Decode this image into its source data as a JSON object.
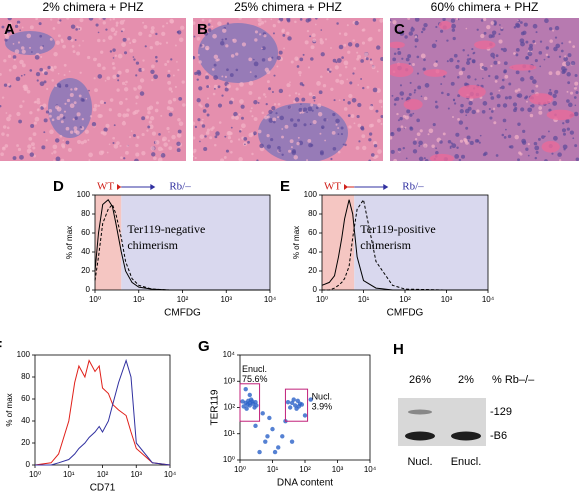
{
  "images": [
    {
      "letter": "A",
      "title": "2% chimera + PHZ"
    },
    {
      "letter": "B",
      "title": "25% chimera + PHZ"
    },
    {
      "letter": "C",
      "title": "60% chimera + PHZ"
    }
  ],
  "chart_data": [
    {
      "type": "line",
      "letter": "D",
      "ylabel": "% of max",
      "xlabel": "CMFDG",
      "xscale": "log",
      "xlim": [
        1,
        10000
      ],
      "ylim": [
        0,
        100
      ],
      "xticks": [
        {
          "value": 1,
          "label": "10⁰"
        },
        {
          "value": 10,
          "label": "10¹"
        },
        {
          "value": 100,
          "label": "10²"
        },
        {
          "value": 1000,
          "label": "10³"
        },
        {
          "value": 10000,
          "label": "10⁴"
        }
      ],
      "yticks": [
        0,
        20,
        40,
        60,
        80,
        100
      ],
      "regions": [
        {
          "from": 1,
          "to": 4,
          "color": "#f5c6c2"
        },
        {
          "from": 4,
          "to": 10000,
          "color": "#d9d8ee"
        }
      ],
      "annotations": {
        "left": "WT",
        "right": "Rb/–",
        "note": [
          "Ter119-negative",
          "chimerism"
        ]
      },
      "series": [
        {
          "color": "#000000",
          "style": "solid",
          "x": [
            1,
            1.2,
            1.5,
            2,
            2.5,
            3,
            4,
            5,
            7,
            10,
            20,
            50,
            100,
            1000,
            10000
          ],
          "values": [
            20,
            60,
            90,
            95,
            88,
            70,
            40,
            20,
            8,
            3,
            1,
            0,
            0,
            0,
            0
          ]
        },
        {
          "color": "#000000",
          "style": "dashed",
          "x": [
            1,
            1.2,
            1.5,
            2,
            2.5,
            3,
            4,
            5,
            7,
            10,
            20,
            50,
            100,
            1000,
            10000
          ],
          "values": [
            10,
            35,
            70,
            85,
            90,
            80,
            55,
            30,
            12,
            5,
            1,
            0,
            0,
            0,
            0
          ]
        }
      ]
    },
    {
      "type": "line",
      "letter": "E",
      "ylabel": "% of max",
      "xlabel": "CMFDG",
      "xscale": "log",
      "xlim": [
        1,
        10000
      ],
      "ylim": [
        0,
        100
      ],
      "xticks": [
        {
          "value": 1,
          "label": "10⁰"
        },
        {
          "value": 10,
          "label": "10¹"
        },
        {
          "value": 100,
          "label": "10²"
        },
        {
          "value": 1000,
          "label": "10³"
        },
        {
          "value": 10000,
          "label": "10⁴"
        }
      ],
      "yticks": [
        0,
        20,
        40,
        60,
        80,
        100
      ],
      "regions": [
        {
          "from": 1,
          "to": 6,
          "color": "#f5c6c2"
        },
        {
          "from": 6,
          "to": 10000,
          "color": "#d9d8ee"
        }
      ],
      "annotations": {
        "left": "WT",
        "right": "Rb/–",
        "note": [
          "Ter119-positive",
          "chimerism"
        ]
      },
      "series": [
        {
          "color": "#000000",
          "style": "solid",
          "x": [
            1,
            1.5,
            2,
            2.5,
            3,
            3.5,
            4.5,
            5.5,
            7,
            10,
            20,
            50,
            100,
            1000,
            10000
          ],
          "values": [
            5,
            8,
            15,
            35,
            55,
            75,
            95,
            80,
            35,
            10,
            2,
            0,
            0,
            0,
            0
          ]
        },
        {
          "color": "#000000",
          "style": "dashed",
          "x": [
            1,
            1.5,
            2,
            2.5,
            3,
            3.5,
            4.5,
            5.5,
            7,
            10,
            20,
            50,
            100,
            1000,
            10000
          ],
          "values": [
            0,
            0,
            2,
            5,
            8,
            12,
            25,
            55,
            85,
            95,
            30,
            5,
            1,
            0,
            0
          ]
        }
      ]
    },
    {
      "type": "line",
      "letter": "F",
      "ylabel": "% of max",
      "xlabel": "CD71",
      "xscale": "log",
      "xlim": [
        1,
        10000
      ],
      "ylim": [
        0,
        100
      ],
      "xticks": [
        {
          "value": 1,
          "label": "10⁰"
        },
        {
          "value": 10,
          "label": "10¹"
        },
        {
          "value": 100,
          "label": "10²"
        },
        {
          "value": 1000,
          "label": "10³"
        },
        {
          "value": 10000,
          "label": "10⁴"
        }
      ],
      "yticks": [
        0,
        20,
        40,
        60,
        80,
        100
      ],
      "series": [
        {
          "color": "#e0201a",
          "style": "solid",
          "x": [
            1,
            3,
            5,
            10,
            15,
            20,
            30,
            40,
            60,
            80,
            100,
            150,
            200,
            300,
            500,
            700,
            1000,
            3000,
            10000
          ],
          "values": [
            0,
            2,
            10,
            40,
            75,
            90,
            80,
            95,
            85,
            90,
            70,
            65,
            55,
            50,
            45,
            30,
            15,
            2,
            0
          ]
        },
        {
          "color": "#3030a0",
          "style": "solid",
          "x": [
            1,
            3,
            5,
            10,
            15,
            20,
            30,
            40,
            60,
            80,
            100,
            150,
            200,
            300,
            500,
            700,
            1000,
            3000,
            10000
          ],
          "values": [
            0,
            0,
            2,
            5,
            10,
            15,
            20,
            25,
            30,
            35,
            30,
            40,
            55,
            75,
            95,
            80,
            20,
            2,
            0
          ]
        }
      ]
    },
    {
      "type": "scatter",
      "letter": "G",
      "ylabel": "TER119",
      "xlabel": "DNA content",
      "xscale": "log",
      "yscale": "log",
      "xlim": [
        1,
        10000
      ],
      "ylim": [
        1,
        10000
      ],
      "xticks": [
        {
          "value": 1,
          "label": "10⁰"
        },
        {
          "value": 10,
          "label": "10¹"
        },
        {
          "value": 100,
          "label": "10²"
        },
        {
          "value": 1000,
          "label": "10³"
        },
        {
          "value": 10000,
          "label": "10⁴"
        }
      ],
      "yticks": [
        {
          "value": 1,
          "label": "10⁰"
        },
        {
          "value": 10,
          "label": "10¹"
        },
        {
          "value": 100,
          "label": "10²"
        },
        {
          "value": 1000,
          "label": "10³"
        },
        {
          "value": 10000,
          "label": "10⁴"
        }
      ],
      "color": "#2a62c8",
      "x": [
        1.5,
        2,
        1.8,
        2.5,
        1.3,
        3,
        2.2,
        1.6,
        2.8,
        1.2,
        2,
        1.7,
        2.4,
        3.2,
        40,
        50,
        60,
        35,
        70,
        45,
        55,
        80,
        30,
        65,
        5,
        8,
        3,
        10,
        20,
        6,
        15,
        4,
        25,
        100,
        150,
        2,
        1.5,
        7,
        12,
        40
      ],
      "values": [
        150,
        120,
        180,
        140,
        110,
        160,
        200,
        90,
        100,
        170,
        150,
        130,
        170,
        120,
        150,
        120,
        180,
        100,
        140,
        200,
        90,
        130,
        160,
        110,
        60,
        40,
        20,
        15,
        8,
        5,
        3,
        2,
        30,
        50,
        200,
        300,
        500,
        8,
        2,
        5
      ],
      "gates": [
        {
          "label": "Enucl.",
          "percent": "75.6%",
          "x": [
            1,
            4
          ],
          "y": [
            30,
            800
          ],
          "color": "#c0207a"
        },
        {
          "label": "Nucl.",
          "percent": "3.9%",
          "x": [
            25,
            120
          ],
          "y": [
            30,
            500
          ],
          "color": "#c0207a"
        }
      ]
    }
  ],
  "gel": {
    "letter": "H",
    "column_label": "% Rb–/–",
    "bands": [
      "-129",
      "-B6"
    ],
    "lanes": [
      {
        "percent": "26%",
        "label": "Nucl."
      },
      {
        "percent": "2%",
        "label": "Enucl."
      }
    ]
  }
}
